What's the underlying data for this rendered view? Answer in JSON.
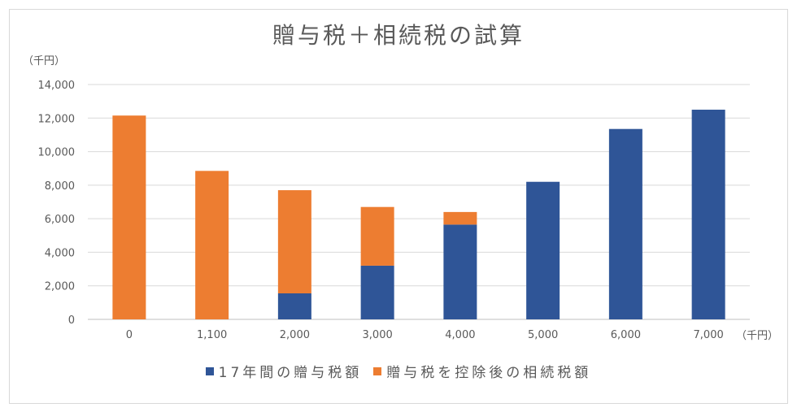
{
  "chart_data": {
    "type": "bar",
    "stacked": true,
    "title": "贈与税＋相続税の試算",
    "y_unit": "（千円）",
    "x_unit": "（千円）",
    "categories": [
      "0",
      "1,100",
      "2,000",
      "3,000",
      "4,000",
      "5,000",
      "6,000",
      "7,000"
    ],
    "series": [
      {
        "name": "17年間の贈与税額",
        "color": "#2f5597",
        "values": [
          0,
          0,
          1550,
          3200,
          5650,
          8200,
          11350,
          12500
        ]
      },
      {
        "name": "贈与税を控除後の相続税額",
        "color": "#ed7d31",
        "values": [
          12150,
          8850,
          6150,
          3500,
          750,
          0,
          0,
          0
        ]
      }
    ],
    "ylim": [
      0,
      14000
    ],
    "yticks": [
      0,
      2000,
      4000,
      6000,
      8000,
      10000,
      12000,
      14000
    ],
    "ytick_labels": [
      "0",
      "2,000",
      "4,000",
      "6,000",
      "8,000",
      "10,000",
      "12,000",
      "14,000"
    ],
    "grid": true,
    "legend_position": "bottom"
  }
}
